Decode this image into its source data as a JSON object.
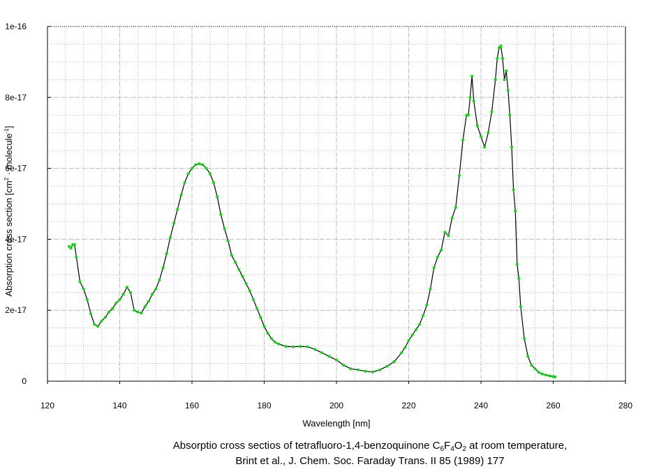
{
  "chart_data": {
    "type": "line",
    "xlabel": "Wavelength [nm]",
    "ylabel": "Absorption cross section [cm",
    "ylabel_sup1": "2",
    "ylabel_mid": " · molecule",
    "ylabel_sup2": "-1",
    "ylabel_end": "]",
    "xlim": [
      120,
      280
    ],
    "ylim": [
      0,
      1e-16
    ],
    "x_ticks": [
      120,
      140,
      160,
      180,
      200,
      220,
      240,
      260,
      280
    ],
    "y_ticks": [
      0,
      2e-17,
      4e-17,
      6e-17,
      8e-17,
      1e-16
    ],
    "x_tick_labels": [
      "120",
      "140",
      "160",
      "180",
      "200",
      "220",
      "240",
      "260",
      "280"
    ],
    "y_tick_labels": [
      "0",
      "2e-17",
      "4e-17",
      "6e-17",
      "8e-17",
      "1e-16"
    ],
    "grid": true,
    "line_color": "#000000",
    "marker_color": "#00e000",
    "series": [
      {
        "x": [
          126,
          126.5,
          127,
          127.5,
          128,
          129,
          130,
          131,
          132,
          133,
          134,
          135,
          136,
          137,
          138,
          139,
          140,
          141,
          142,
          143,
          144,
          145,
          146,
          147,
          148,
          149,
          150,
          151,
          152,
          153,
          154,
          155,
          156,
          157,
          158,
          159,
          160,
          161,
          162,
          163,
          164,
          165,
          166,
          167,
          168,
          169,
          170,
          171,
          172,
          173,
          174,
          175,
          176,
          177,
          178,
          179,
          180,
          181,
          182,
          183,
          184,
          186,
          188,
          190,
          192,
          194,
          196,
          198,
          200,
          202,
          204,
          206,
          208,
          210,
          212,
          214,
          216,
          218,
          219,
          220,
          221,
          222,
          223,
          224,
          225,
          226,
          227,
          228,
          229,
          230,
          231,
          232,
          233,
          234,
          235,
          236,
          236.5,
          237,
          237.5,
          238,
          239,
          240,
          241,
          242,
          243,
          244,
          244.5,
          245,
          245.5,
          246,
          246.5,
          247,
          247.5,
          248,
          248.5,
          249,
          249.5,
          250,
          250.5,
          251,
          252,
          253,
          254,
          255,
          256,
          257,
          258,
          259,
          260,
          260.5
        ],
        "y": [
          3.8e-17,
          3.75e-17,
          3.85e-17,
          3.85e-17,
          3.5e-17,
          2.8e-17,
          2.6e-17,
          2.3e-17,
          1.9e-17,
          1.6e-17,
          1.55e-17,
          1.7e-17,
          1.8e-17,
          1.95e-17,
          2.05e-17,
          2.2e-17,
          2.3e-17,
          2.45e-17,
          2.65e-17,
          2.5e-17,
          2e-17,
          1.95e-17,
          1.92e-17,
          2.1e-17,
          2.25e-17,
          2.45e-17,
          2.6e-17,
          2.85e-17,
          3.2e-17,
          3.6e-17,
          4.05e-17,
          4.45e-17,
          4.85e-17,
          5.25e-17,
          5.6e-17,
          5.85e-17,
          6e-17,
          6.1e-17,
          6.13e-17,
          6.1e-17,
          6e-17,
          5.85e-17,
          5.6e-17,
          5.2e-17,
          4.7e-17,
          4.3e-17,
          3.95e-17,
          3.55e-17,
          3.35e-17,
          3.15e-17,
          2.95e-17,
          2.75e-17,
          2.55e-17,
          2.3e-17,
          2.05e-17,
          1.8e-17,
          1.55e-17,
          1.35e-17,
          1.2e-17,
          1.1e-17,
          1.05e-17,
          9.8e-18,
          9.7e-18,
          9.8e-18,
          9.7e-18,
          9e-18,
          8e-18,
          7e-18,
          6e-18,
          4.5e-18,
          3.5e-18,
          3.2e-18,
          2.8e-18,
          2.6e-18,
          3.2e-18,
          4.2e-18,
          5.5e-18,
          8e-18,
          9.5e-18,
          1.15e-17,
          1.3e-17,
          1.45e-17,
          1.6e-17,
          1.85e-17,
          2.15e-17,
          2.6e-17,
          3.2e-17,
          3.5e-17,
          3.7e-17,
          4.2e-17,
          4.1e-17,
          4.6e-17,
          4.9e-17,
          5.8e-17,
          6.8e-17,
          7.5e-17,
          7.5e-17,
          8e-17,
          8.6e-17,
          7.9e-17,
          7.2e-17,
          6.9e-17,
          6.6e-17,
          7e-17,
          7.6e-17,
          8.5e-17,
          9.1e-17,
          9.4e-17,
          9.45e-17,
          9.1e-17,
          8.5e-17,
          8.75e-17,
          8.2e-17,
          7.5e-17,
          6.6e-17,
          5.4e-17,
          4.8e-17,
          3.3e-17,
          2.9e-17,
          2.1e-17,
          1.2e-17,
          7e-18,
          4.5e-18,
          3.5e-18,
          2.5e-18,
          2e-18,
          1.7e-18,
          1.5e-18,
          1.3e-18,
          1.2e-18
        ]
      }
    ]
  },
  "caption": {
    "line1_pre": "Absorptio cross sectios of tetrafluoro-1,4-benzoquinone C",
    "formula": [
      {
        "t": "6",
        "sub": true
      },
      {
        "t": "F",
        "sub": false
      },
      {
        "t": "4",
        "sub": true
      },
      {
        "t": "O",
        "sub": false
      },
      {
        "t": "2",
        "sub": true
      }
    ],
    "line1_post": " at room temperature,",
    "line2": "Brint et al., J. Chem. Soc. Faraday Trans. II 85 (1989) 177"
  }
}
